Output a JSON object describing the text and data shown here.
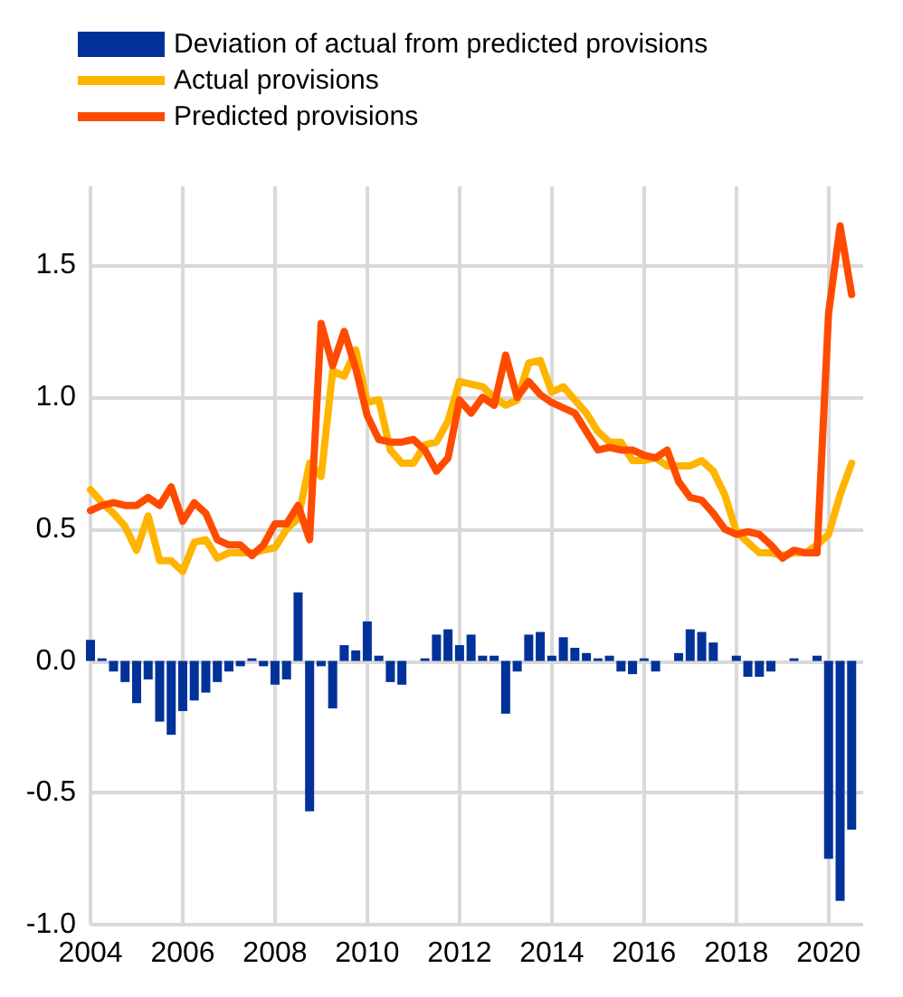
{
  "chart_data": {
    "type": "line",
    "x": [
      2004,
      2004.25,
      2004.5,
      2004.75,
      2005,
      2005.25,
      2005.5,
      2005.75,
      2006,
      2006.25,
      2006.5,
      2006.75,
      2007,
      2007.25,
      2007.5,
      2007.75,
      2008,
      2008.25,
      2008.5,
      2008.75,
      2009,
      2009.25,
      2009.5,
      2009.75,
      2010,
      2010.25,
      2010.5,
      2010.75,
      2011,
      2011.25,
      2011.5,
      2011.75,
      2012,
      2012.25,
      2012.5,
      2012.75,
      2013,
      2013.25,
      2013.5,
      2013.75,
      2014,
      2014.25,
      2014.5,
      2014.75,
      2015,
      2015.25,
      2015.5,
      2015.75,
      2016,
      2016.25,
      2016.5,
      2016.75,
      2017,
      2017.25,
      2017.5,
      2017.75,
      2018,
      2018.25,
      2018.5,
      2018.75,
      2019,
      2019.25,
      2019.5,
      2019.75,
      2020,
      2020.25,
      2020.5
    ],
    "series": [
      {
        "name": "Deviation of actual from predicted provisions",
        "type": "bar",
        "color": "#003299",
        "values": [
          0.08,
          0.01,
          -0.04,
          -0.08,
          -0.16,
          -0.07,
          -0.23,
          -0.28,
          -0.19,
          -0.15,
          -0.12,
          -0.08,
          -0.04,
          -0.02,
          0.01,
          -0.02,
          -0.09,
          -0.07,
          0.26,
          -0.57,
          -0.02,
          -0.18,
          0.06,
          0.04,
          0.15,
          0.02,
          -0.08,
          -0.09,
          0,
          0.01,
          0.1,
          0.12,
          0.06,
          0.1,
          0.02,
          0.02,
          -0.2,
          -0.04,
          0.1,
          0.11,
          0.02,
          0.09,
          0.05,
          0.03,
          0.01,
          0.02,
          -0.04,
          -0.05,
          0.01,
          -0.04,
          0,
          0.03,
          0.12,
          0.11,
          0.07,
          0,
          0.02,
          -0.06,
          -0.06,
          -0.04,
          0,
          0.01,
          0,
          0.02,
          -0.75,
          -0.91,
          -0.64
        ]
      },
      {
        "name": "Actual provisions",
        "color": "#ffb400",
        "values": [
          0.65,
          0.6,
          0.56,
          0.51,
          0.42,
          0.55,
          0.38,
          0.38,
          0.34,
          0.45,
          0.46,
          0.39,
          0.41,
          0.41,
          0.41,
          0.42,
          0.43,
          0.5,
          0.54,
          0.75,
          0.7,
          1.1,
          1.08,
          1.18,
          0.98,
          0.99,
          0.8,
          0.75,
          0.75,
          0.82,
          0.83,
          0.91,
          1.06,
          1.05,
          1.04,
          1.0,
          0.97,
          0.99,
          1.13,
          1.14,
          1.02,
          1.04,
          0.99,
          0.94,
          0.87,
          0.83,
          0.83,
          0.76,
          0.76,
          0.77,
          0.74,
          0.74,
          0.74,
          0.76,
          0.72,
          0.63,
          0.49,
          0.45,
          0.41,
          0.41,
          0.4,
          0.41,
          0.41,
          0.44,
          0.48,
          0.63,
          0.75
        ]
      },
      {
        "name": "Predicted provisions",
        "color": "#ff4b00",
        "values": [
          0.57,
          0.59,
          0.6,
          0.59,
          0.59,
          0.62,
          0.59,
          0.66,
          0.53,
          0.6,
          0.56,
          0.46,
          0.44,
          0.44,
          0.4,
          0.44,
          0.52,
          0.52,
          0.59,
          0.46,
          1.28,
          1.12,
          1.25,
          1.11,
          0.93,
          0.84,
          0.83,
          0.83,
          0.84,
          0.8,
          0.72,
          0.77,
          0.99,
          0.94,
          1.0,
          0.97,
          1.16,
          1.0,
          1.06,
          1.01,
          0.98,
          0.96,
          0.94,
          0.87,
          0.8,
          0.81,
          0.8,
          0.8,
          0.78,
          0.77,
          0.8,
          0.68,
          0.62,
          0.61,
          0.56,
          0.5,
          0.48,
          0.49,
          0.48,
          0.44,
          0.39,
          0.42,
          0.41,
          0.41,
          1.32,
          1.65,
          1.39
        ]
      }
    ],
    "xlim": [
      2004,
      2020.75
    ],
    "xticks": [
      2004,
      2006,
      2008,
      2010,
      2012,
      2014,
      2016,
      2018,
      2020
    ],
    "ylim": [
      -1,
      1.8
    ],
    "yticks": [
      {
        "value": -1,
        "label": "-1.0"
      },
      -0.5,
      {
        "value": 0,
        "label": "0.0"
      },
      0.5,
      {
        "value": 1,
        "label": "1.0"
      },
      1.5
    ],
    "grid": true,
    "legend": "top",
    "marker": "none",
    "line_style": "solid"
  }
}
